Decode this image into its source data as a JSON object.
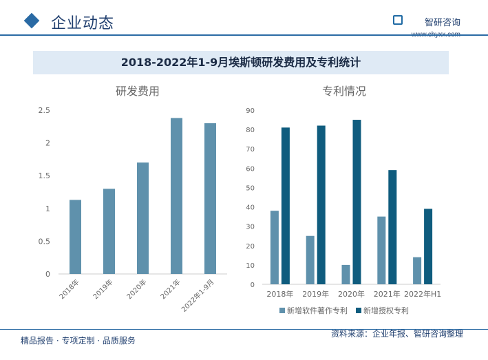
{
  "header": {
    "title": "企业动态",
    "brand_name": "智研咨询",
    "brand_url": "www.chyxx.com"
  },
  "main_title": "2018-2022年1-9月埃斯顿研发费用及专利统计",
  "colors": {
    "bar_light": "#5f91ac",
    "bar_dark": "#0f5c7e",
    "axis": "#cccccc",
    "text": "#666666"
  },
  "chart_data": [
    {
      "type": "bar",
      "title": "研发费用",
      "categories": [
        "2018年",
        "2019年",
        "2020年",
        "2021年",
        "2022年1-9月"
      ],
      "values": [
        1.13,
        1.3,
        1.7,
        2.38,
        2.3
      ],
      "ylim": [
        0,
        2.5
      ],
      "yticks": [
        0,
        0.5,
        1,
        1.5,
        2,
        2.5
      ],
      "ytick_labels": [
        "0",
        "0.5",
        "1",
        "1.5",
        "2",
        "2.5"
      ],
      "color": "#5f91ac"
    },
    {
      "type": "bar",
      "title": "专利情况",
      "categories": [
        "2018年",
        "2019年",
        "2020年",
        "2021年",
        "2022年H1"
      ],
      "ylim": [
        0,
        90
      ],
      "yticks": [
        0,
        10,
        20,
        30,
        40,
        50,
        60,
        70,
        80,
        90
      ],
      "series": [
        {
          "name": "新增软件著作专利",
          "values": [
            38,
            25,
            10,
            35,
            14
          ],
          "color": "#5f91ac"
        },
        {
          "name": "新增授权专利",
          "values": [
            81,
            82,
            85,
            59,
            39
          ],
          "color": "#0f5c7e"
        }
      ],
      "legend": "bottom"
    }
  ],
  "footer": {
    "left": "精品报告 · 专项定制 · 品质服务",
    "right": "资料来源：企业年报、智研咨询整理"
  }
}
